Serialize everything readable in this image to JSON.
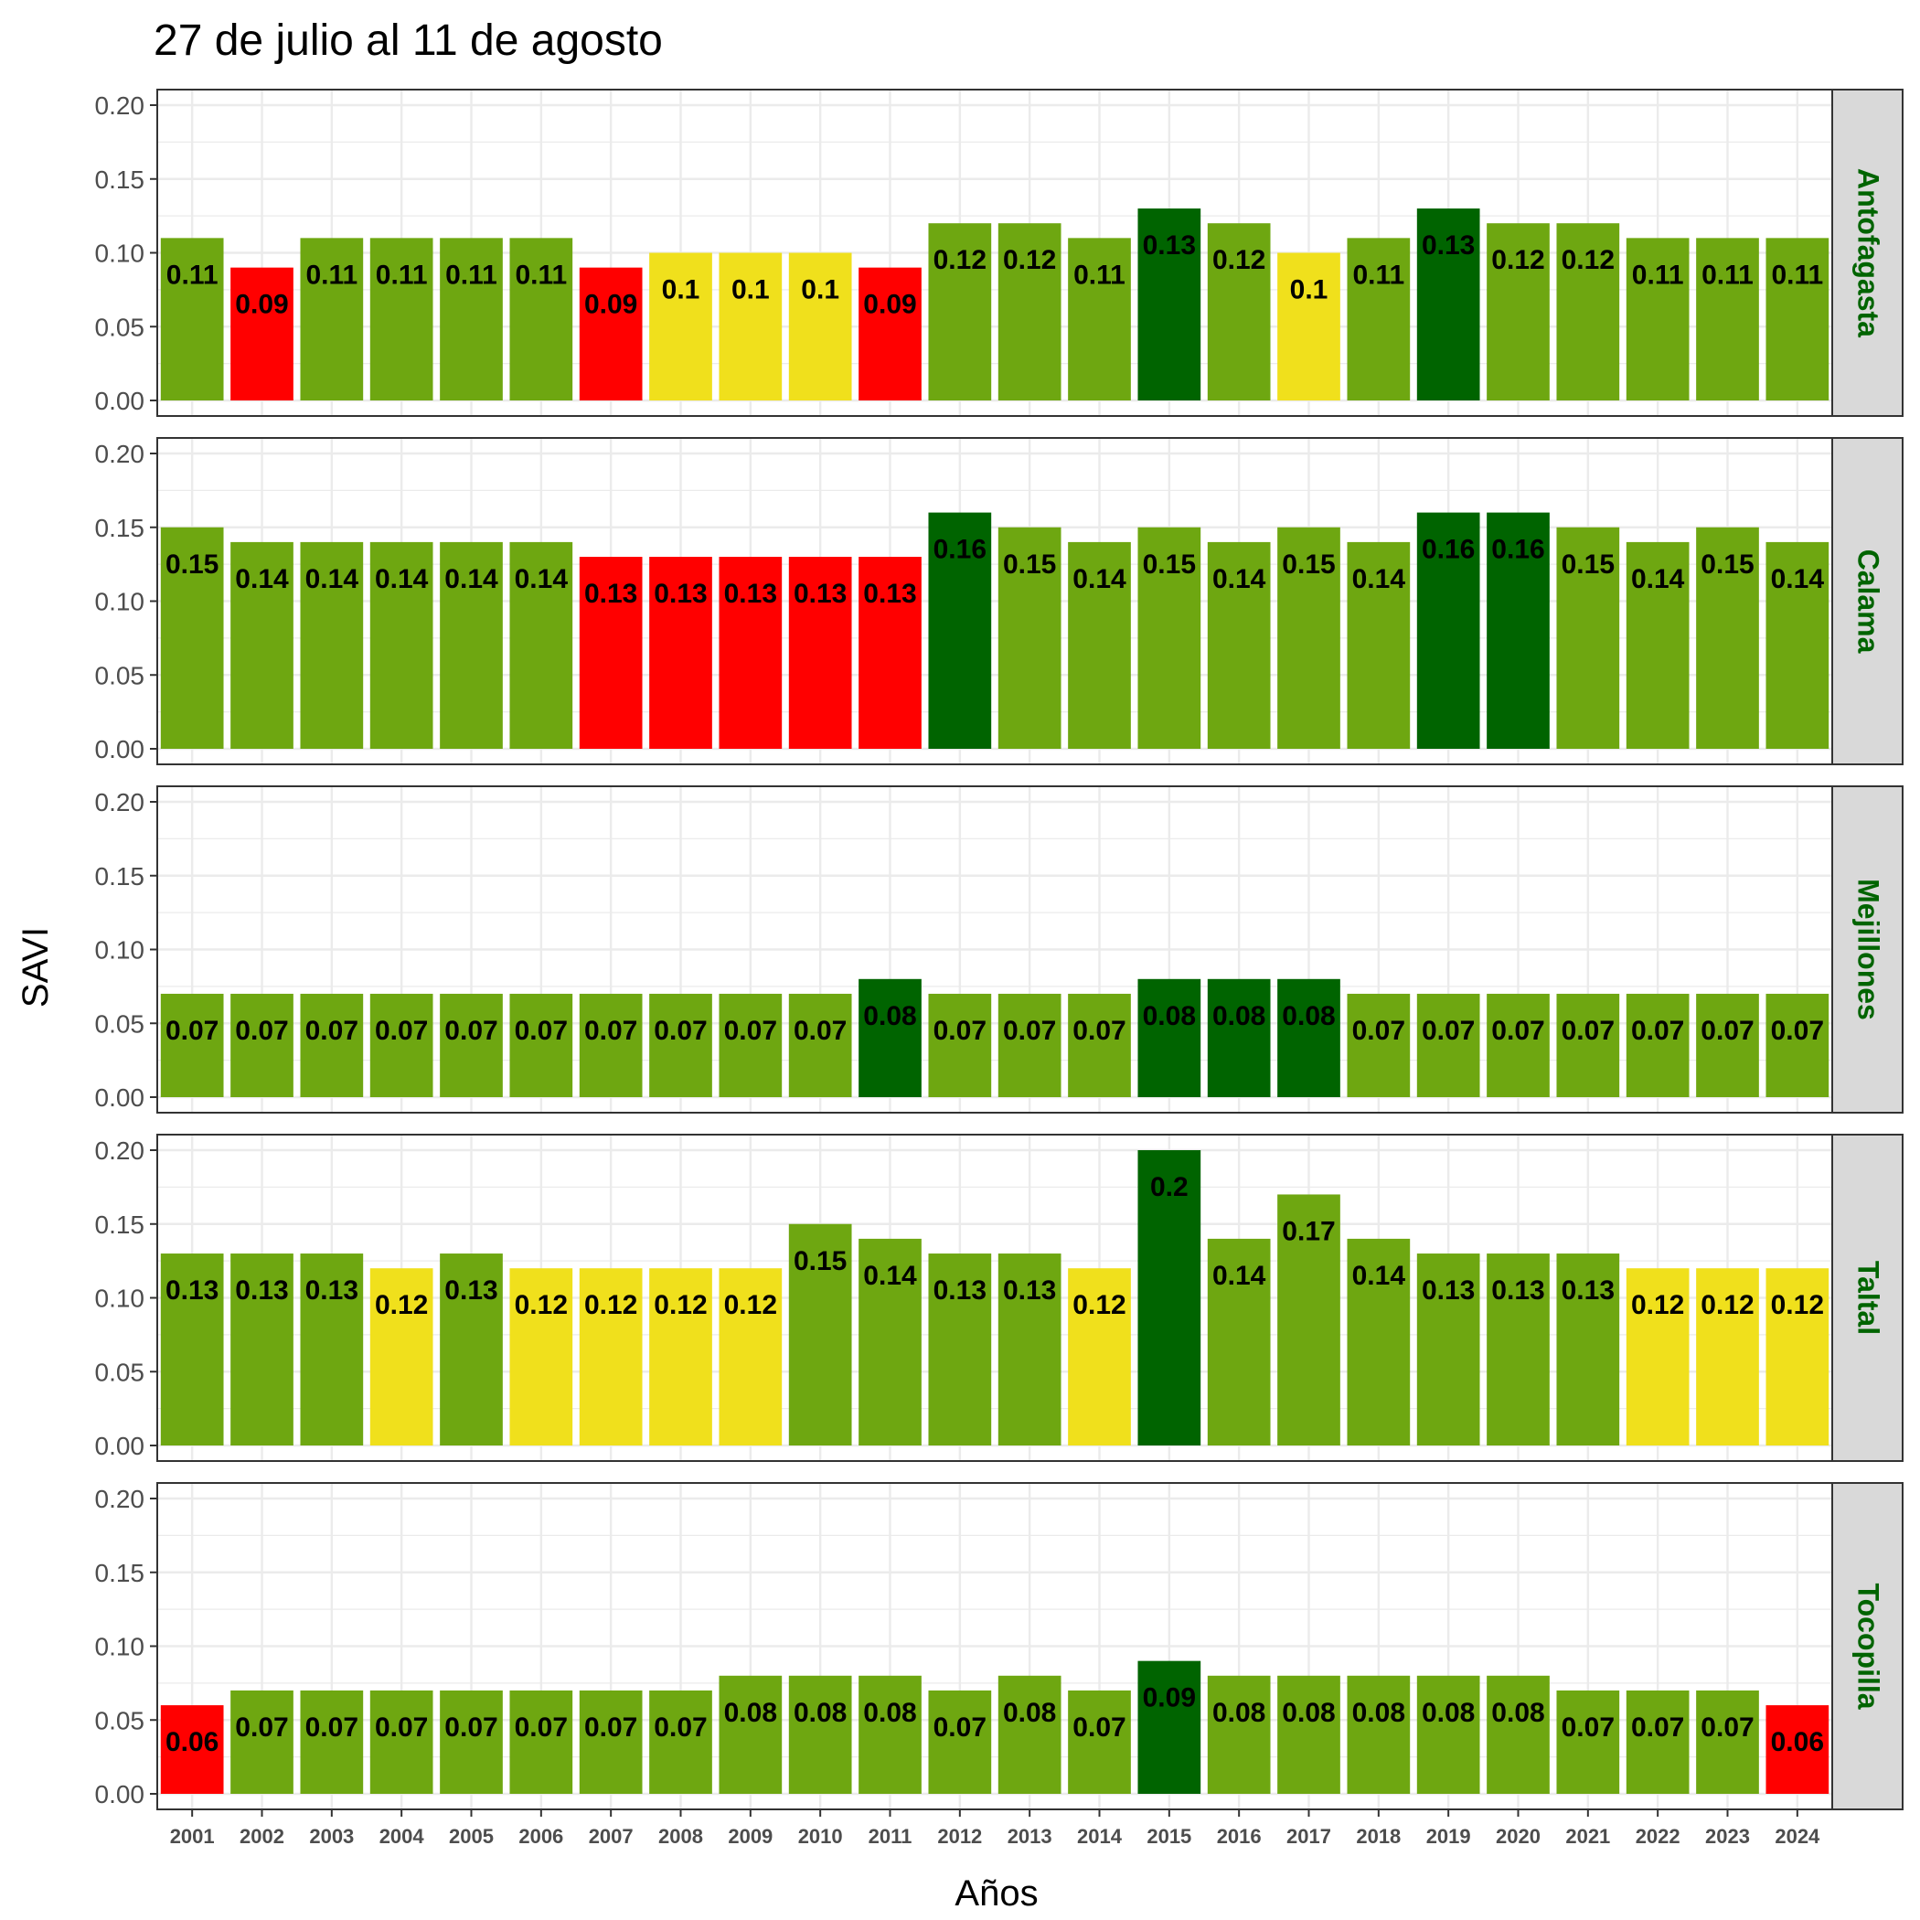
{
  "chart_data": {
    "type": "bar",
    "title": "27 de julio al 11 de agosto",
    "xlabel": "Años",
    "ylabel": "SAVI",
    "ylim": [
      0,
      0.2
    ],
    "y_ticks": [
      "0.00",
      "0.05",
      "0.10",
      "0.15",
      "0.20"
    ],
    "grid": true,
    "categories": [
      "2001",
      "2002",
      "2003",
      "2004",
      "2005",
      "2006",
      "2007",
      "2008",
      "2009",
      "2010",
      "2011",
      "2012",
      "2013",
      "2014",
      "2015",
      "2016",
      "2017",
      "2018",
      "2019",
      "2020",
      "2021",
      "2022",
      "2023",
      "2024"
    ],
    "facet_text_color": "#006400",
    "colors": {
      "red": "#ff0000",
      "yellow": "#f0e01c",
      "green": "#6ea711",
      "dark_green": "#006400"
    },
    "facets": [
      {
        "name": "Antofagasta",
        "values": [
          0.11,
          0.09,
          0.11,
          0.11,
          0.11,
          0.11,
          0.09,
          0.1,
          0.1,
          0.1,
          0.09,
          0.12,
          0.12,
          0.11,
          0.13,
          0.12,
          0.1,
          0.11,
          0.13,
          0.12,
          0.12,
          0.11,
          0.11,
          0.11
        ],
        "labels": [
          "0.11",
          "0.09",
          "0.11",
          "0.11",
          "0.11",
          "0.11",
          "0.09",
          "0.1",
          "0.1",
          "0.1",
          "0.09",
          "0.12",
          "0.12",
          "0.11",
          "0.13",
          "0.12",
          "0.1",
          "0.11",
          "0.13",
          "0.12",
          "0.12",
          "0.11",
          "0.11",
          "0.11"
        ],
        "classes": [
          "green",
          "red",
          "green",
          "green",
          "green",
          "green",
          "red",
          "yellow",
          "yellow",
          "yellow",
          "red",
          "green",
          "green",
          "green",
          "dark_green",
          "green",
          "yellow",
          "green",
          "dark_green",
          "green",
          "green",
          "green",
          "green",
          "green"
        ]
      },
      {
        "name": "Calama",
        "values": [
          0.15,
          0.14,
          0.14,
          0.14,
          0.14,
          0.14,
          0.13,
          0.13,
          0.13,
          0.13,
          0.13,
          0.16,
          0.15,
          0.14,
          0.15,
          0.14,
          0.15,
          0.14,
          0.16,
          0.16,
          0.15,
          0.14,
          0.15,
          0.14
        ],
        "labels": [
          "0.15",
          "0.14",
          "0.14",
          "0.14",
          "0.14",
          "0.14",
          "0.13",
          "0.13",
          "0.13",
          "0.13",
          "0.13",
          "0.16",
          "0.15",
          "0.14",
          "0.15",
          "0.14",
          "0.15",
          "0.14",
          "0.16",
          "0.16",
          "0.15",
          "0.14",
          "0.15",
          "0.14"
        ],
        "classes": [
          "green",
          "green",
          "green",
          "green",
          "green",
          "green",
          "red",
          "red",
          "red",
          "red",
          "red",
          "dark_green",
          "green",
          "green",
          "green",
          "green",
          "green",
          "green",
          "dark_green",
          "dark_green",
          "green",
          "green",
          "green",
          "green"
        ]
      },
      {
        "name": "Mejillones",
        "values": [
          0.07,
          0.07,
          0.07,
          0.07,
          0.07,
          0.07,
          0.07,
          0.07,
          0.07,
          0.07,
          0.08,
          0.07,
          0.07,
          0.07,
          0.08,
          0.08,
          0.08,
          0.07,
          0.07,
          0.07,
          0.07,
          0.07,
          0.07,
          0.07
        ],
        "labels": [
          "0.07",
          "0.07",
          "0.07",
          "0.07",
          "0.07",
          "0.07",
          "0.07",
          "0.07",
          "0.07",
          "0.07",
          "0.08",
          "0.07",
          "0.07",
          "0.07",
          "0.08",
          "0.08",
          "0.08",
          "0.07",
          "0.07",
          "0.07",
          "0.07",
          "0.07",
          "0.07",
          "0.07"
        ],
        "classes": [
          "green",
          "green",
          "green",
          "green",
          "green",
          "green",
          "green",
          "green",
          "green",
          "green",
          "dark_green",
          "green",
          "green",
          "green",
          "dark_green",
          "dark_green",
          "dark_green",
          "green",
          "green",
          "green",
          "green",
          "green",
          "green",
          "green"
        ]
      },
      {
        "name": "Taltal",
        "values": [
          0.13,
          0.13,
          0.13,
          0.12,
          0.13,
          0.12,
          0.12,
          0.12,
          0.12,
          0.15,
          0.14,
          0.13,
          0.13,
          0.12,
          0.2,
          0.14,
          0.17,
          0.14,
          0.13,
          0.13,
          0.13,
          0.12,
          0.12,
          0.12
        ],
        "labels": [
          "0.13",
          "0.13",
          "0.13",
          "0.12",
          "0.13",
          "0.12",
          "0.12",
          "0.12",
          "0.12",
          "0.15",
          "0.14",
          "0.13",
          "0.13",
          "0.12",
          "0.2",
          "0.14",
          "0.17",
          "0.14",
          "0.13",
          "0.13",
          "0.13",
          "0.12",
          "0.12",
          "0.12"
        ],
        "classes": [
          "green",
          "green",
          "green",
          "yellow",
          "green",
          "yellow",
          "yellow",
          "yellow",
          "yellow",
          "green",
          "green",
          "green",
          "green",
          "yellow",
          "dark_green",
          "green",
          "green",
          "green",
          "green",
          "green",
          "green",
          "yellow",
          "yellow",
          "yellow"
        ]
      },
      {
        "name": "Tocopilla",
        "values": [
          0.06,
          0.07,
          0.07,
          0.07,
          0.07,
          0.07,
          0.07,
          0.07,
          0.08,
          0.08,
          0.08,
          0.07,
          0.08,
          0.07,
          0.09,
          0.08,
          0.08,
          0.08,
          0.08,
          0.08,
          0.07,
          0.07,
          0.07,
          0.06
        ],
        "labels": [
          "0.06",
          "0.07",
          "0.07",
          "0.07",
          "0.07",
          "0.07",
          "0.07",
          "0.07",
          "0.08",
          "0.08",
          "0.08",
          "0.07",
          "0.08",
          "0.07",
          "0.09",
          "0.08",
          "0.08",
          "0.08",
          "0.08",
          "0.08",
          "0.07",
          "0.07",
          "0.07",
          "0.06"
        ],
        "classes": [
          "red",
          "green",
          "green",
          "green",
          "green",
          "green",
          "green",
          "green",
          "green",
          "green",
          "green",
          "green",
          "green",
          "green",
          "dark_green",
          "green",
          "green",
          "green",
          "green",
          "green",
          "green",
          "green",
          "green",
          "red"
        ]
      }
    ]
  }
}
